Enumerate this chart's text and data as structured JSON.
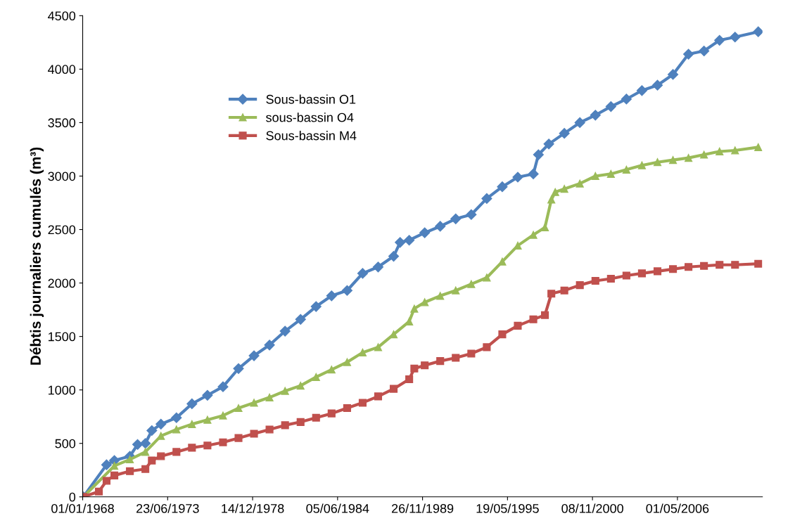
{
  "chart_data": {
    "type": "line",
    "ylabel": "Débtis journaliers cumulés (m³)",
    "xlim": [
      "1968-01-01",
      "2011-10-22"
    ],
    "xticks": [
      {
        "value": "1968-01-01",
        "label": "01/01/1968"
      },
      {
        "value": "1973-06-23",
        "label": "23/06/1973"
      },
      {
        "value": "1978-12-14",
        "label": "14/12/1978"
      },
      {
        "value": "1984-06-05",
        "label": "05/06/1984"
      },
      {
        "value": "1989-11-26",
        "label": "26/11/1989"
      },
      {
        "value": "1995-05-19",
        "label": "19/05/1995"
      },
      {
        "value": "2000-11-08",
        "label": "08/11/2000"
      },
      {
        "value": "2006-05-01",
        "label": "01/05/2006"
      }
    ],
    "ylim": [
      0,
      4500
    ],
    "yticks": [
      0,
      500,
      1000,
      1500,
      2000,
      2500,
      3000,
      3500,
      4000,
      4500
    ],
    "grid": false,
    "legend": "top left",
    "line_style": "solid",
    "series": [
      {
        "name": "Sous-bassin O1",
        "color": "#4f81bd",
        "marker": "diamond",
        "x": [
          "1968-01",
          "1969-07",
          "1970-01",
          "1971-01",
          "1971-07",
          "1972-01",
          "1972-06",
          "1973-01",
          "1974-01",
          "1975-01",
          "1976-01",
          "1977-01",
          "1978-01",
          "1979-01",
          "1980-01",
          "1981-01",
          "1982-01",
          "1983-01",
          "1984-01",
          "1985-01",
          "1986-01",
          "1987-01",
          "1988-01",
          "1988-06",
          "1989-01",
          "1990-01",
          "1991-01",
          "1992-01",
          "1993-01",
          "1994-01",
          "1995-01",
          "1996-01",
          "1997-01",
          "1997-05",
          "1998-01",
          "1999-01",
          "2000-01",
          "2001-01",
          "2002-01",
          "2003-01",
          "2004-01",
          "2005-01",
          "2006-01",
          "2007-01",
          "2008-01",
          "2009-01",
          "2010-01",
          "2011-07"
        ],
        "values": [
          0,
          300,
          340,
          380,
          490,
          500,
          620,
          680,
          740,
          870,
          950,
          1030,
          1200,
          1320,
          1420,
          1550,
          1660,
          1780,
          1880,
          1930,
          2090,
          2150,
          2250,
          2380,
          2400,
          2470,
          2530,
          2600,
          2640,
          2790,
          2900,
          2990,
          3020,
          3200,
          3300,
          3400,
          3500,
          3570,
          3650,
          3720,
          3800,
          3850,
          3950,
          4140,
          4170,
          4270,
          4300,
          4350
        ]
      },
      {
        "name": "sous-bassin O4",
        "color": "#9bbb59",
        "marker": "triangle",
        "x": [
          "1968-01",
          "1970-01",
          "1971-01",
          "1972-01",
          "1973-01",
          "1974-01",
          "1975-01",
          "1976-01",
          "1977-01",
          "1978-01",
          "1979-01",
          "1980-01",
          "1981-01",
          "1982-01",
          "1983-01",
          "1984-01",
          "1985-01",
          "1986-01",
          "1987-01",
          "1988-01",
          "1989-01",
          "1989-05",
          "1990-01",
          "1991-01",
          "1992-01",
          "1993-01",
          "1994-01",
          "1995-01",
          "1996-01",
          "1997-01",
          "1997-10",
          "1998-03",
          "1998-06",
          "1999-01",
          "2000-01",
          "2001-01",
          "2002-01",
          "2003-01",
          "2004-01",
          "2005-01",
          "2006-01",
          "2007-01",
          "2008-01",
          "2009-01",
          "2010-01",
          "2011-07"
        ],
        "values": [
          0,
          290,
          350,
          420,
          570,
          630,
          680,
          720,
          760,
          830,
          880,
          930,
          990,
          1040,
          1120,
          1190,
          1260,
          1350,
          1400,
          1520,
          1640,
          1760,
          1820,
          1880,
          1930,
          1990,
          2050,
          2200,
          2350,
          2450,
          2520,
          2780,
          2850,
          2880,
          2930,
          3000,
          3020,
          3060,
          3100,
          3130,
          3150,
          3170,
          3200,
          3230,
          3240,
          3270
        ]
      },
      {
        "name": "Sous-bassin M4",
        "color": "#c0504d",
        "marker": "square",
        "x": [
          "1968-01",
          "1969-01",
          "1969-07",
          "1970-01",
          "1971-01",
          "1972-01",
          "1972-06",
          "1973-01",
          "1974-01",
          "1975-01",
          "1976-01",
          "1977-01",
          "1978-01",
          "1979-01",
          "1980-01",
          "1981-01",
          "1982-01",
          "1983-01",
          "1984-01",
          "1985-01",
          "1986-01",
          "1987-01",
          "1988-01",
          "1989-01",
          "1989-05",
          "1990-01",
          "1991-01",
          "1992-01",
          "1993-01",
          "1994-01",
          "1995-01",
          "1996-01",
          "1997-01",
          "1997-10",
          "1998-03",
          "1999-01",
          "2000-01",
          "2001-01",
          "2002-01",
          "2003-01",
          "2004-01",
          "2005-01",
          "2006-01",
          "2007-01",
          "2008-01",
          "2009-01",
          "2010-01",
          "2011-07"
        ],
        "values": [
          0,
          50,
          150,
          200,
          240,
          260,
          340,
          380,
          420,
          460,
          480,
          510,
          550,
          590,
          630,
          670,
          700,
          740,
          780,
          830,
          880,
          940,
          1010,
          1100,
          1200,
          1230,
          1270,
          1300,
          1340,
          1400,
          1520,
          1600,
          1660,
          1700,
          1900,
          1930,
          1980,
          2020,
          2040,
          2070,
          2090,
          2110,
          2130,
          2150,
          2160,
          2170,
          2170,
          2180
        ]
      }
    ]
  }
}
